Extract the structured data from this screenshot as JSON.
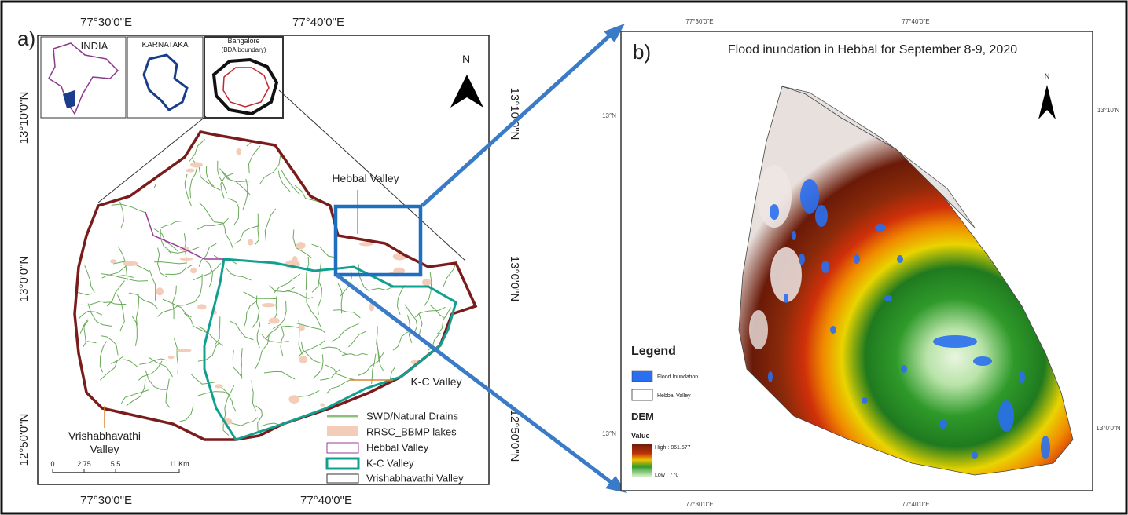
{
  "panel_a": {
    "label": "a)",
    "top_ticks": [
      "77°30'0\"E",
      "77°40'0\"E"
    ],
    "bottom_ticks": [
      "77°30'0\"E",
      "77°40'0\"E"
    ],
    "left_ticks": [
      "13°10'0\"N",
      "13°0'0\"N",
      "12°50'0\"N"
    ],
    "right_ticks": [
      "13°10'0\"N",
      "13°0'0\"N",
      "12°50'0\"N"
    ],
    "insets": [
      "INDIA",
      "KARNATAKA",
      "Bangalore",
      "(BDA boundary)"
    ],
    "north": "N",
    "callouts": [
      "Hebbal Valley",
      "K-C Valley",
      "Vrishabhavathi",
      "Valley"
    ],
    "scale": [
      "0",
      "2.75",
      "5.5",
      "11 Km"
    ],
    "legend": [
      "SWD/Natural Drains",
      "RRSC_BBMP lakes",
      "Hebbal Valley",
      "K-C Valley",
      "Vrishabhavathi Valley"
    ]
  },
  "panel_b": {
    "label": "b)",
    "title": "Flood inundation in Hebbal for September 8-9, 2020",
    "top_ticks": [
      "77°30'0\"E",
      "77°40'0\"E"
    ],
    "bottom_ticks": [
      "77°30'0\"E",
      "77°40'0\"E"
    ],
    "left_ticks": [
      "13°N",
      "13°N"
    ],
    "right_ticks": [
      "13°10'N",
      "13°0'0\"N"
    ],
    "north": "N",
    "legend": {
      "title": "Legend",
      "items": [
        "Flood Inundation",
        "Hebbal Valley"
      ],
      "dem": "DEM",
      "value": "Value",
      "high": "High : 861.577",
      "low": "Low : 770"
    }
  }
}
